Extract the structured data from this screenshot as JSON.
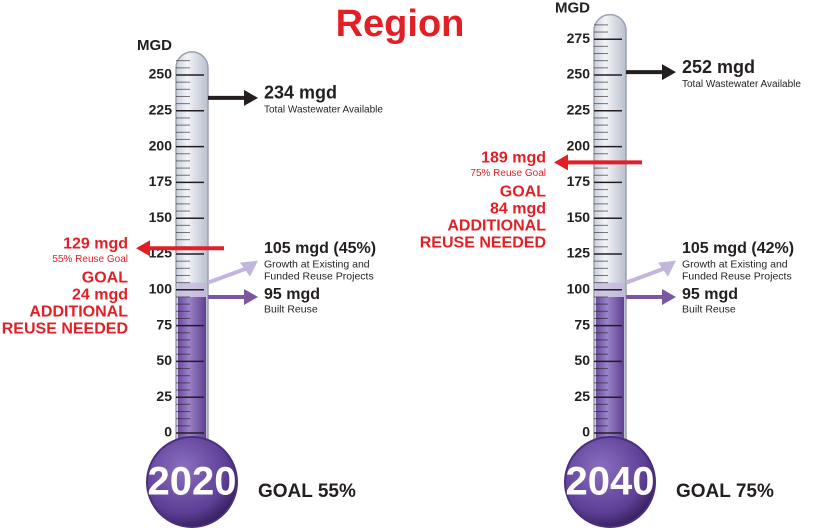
{
  "title": "Region",
  "chart_data": [
    {
      "type": "thermometer",
      "axis_label": "MGD",
      "year": "2020",
      "goal_label": "GOAL 55%",
      "ylim": [
        0,
        262
      ],
      "yticks": [
        0,
        25,
        50,
        75,
        100,
        125,
        150,
        175,
        200,
        225,
        250
      ],
      "total": {
        "value": 234,
        "label": "234 mgd",
        "note": "Total Wastewater Available",
        "color": "#231f20"
      },
      "goal": {
        "value": 129,
        "label": "129 mgd",
        "note": "55% Reuse Goal",
        "color": "#e31f26"
      },
      "gap_text": [
        "GOAL",
        "24 mgd",
        "ADDITIONAL",
        "REUSE NEEDED"
      ],
      "growth": {
        "value": 105,
        "label": "105 mgd (45%)",
        "notes": [
          "Growth at Existing and",
          "Funded Reuse Projects"
        ],
        "color": "#c3b6dd"
      },
      "built": {
        "value": 95,
        "label": "95 mgd",
        "note": "Built Reuse",
        "color": "#7b56a3"
      }
    },
    {
      "type": "thermometer",
      "axis_label": "MGD",
      "year": "2040",
      "goal_label": "GOAL 75%",
      "ylim": [
        0,
        288
      ],
      "yticks": [
        0,
        25,
        50,
        75,
        100,
        125,
        150,
        175,
        200,
        225,
        250,
        275
      ],
      "total": {
        "value": 252,
        "label": "252 mgd",
        "note": "Total Wastewater Available",
        "color": "#231f20"
      },
      "goal": {
        "value": 189,
        "label": "189 mgd",
        "note": "75% Reuse Goal",
        "color": "#e31f26"
      },
      "gap_text": [
        "GOAL",
        "84 mgd",
        "ADDITIONAL",
        "REUSE NEEDED"
      ],
      "growth": {
        "value": 105,
        "label": "105 mgd (42%)",
        "notes": [
          "Growth at Existing and",
          "Funded Reuse Projects"
        ],
        "color": "#c3b6dd"
      },
      "built": {
        "value": 95,
        "label": "95 mgd",
        "note": "Built Reuse",
        "color": "#7b56a3"
      }
    }
  ]
}
